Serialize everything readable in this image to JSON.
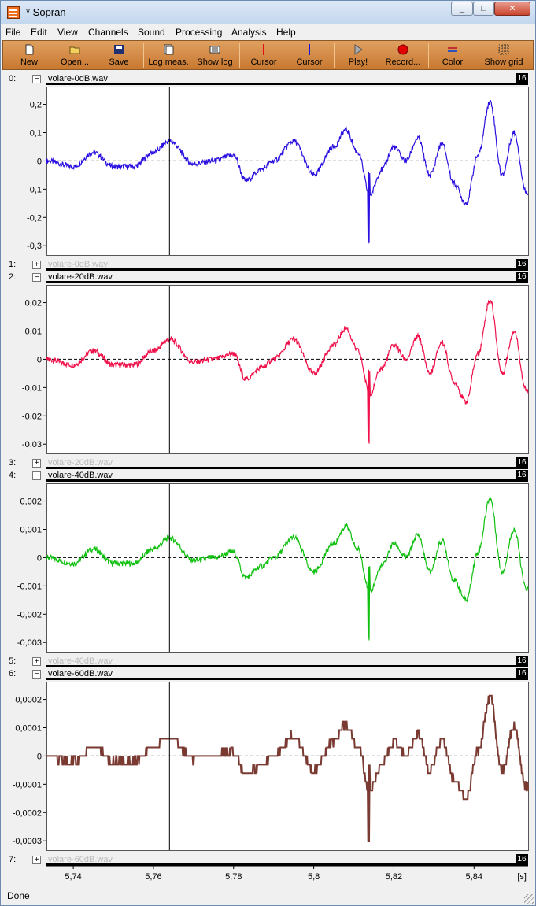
{
  "window": {
    "title": "* Sopran",
    "minimize": "_",
    "maximize": "□",
    "close": "✕"
  },
  "menu": [
    "File",
    "Edit",
    "View",
    "Channels",
    "Sound",
    "Processing",
    "Analysis",
    "Help"
  ],
  "toolbar": {
    "new": "New",
    "open": "Open...",
    "save": "Save",
    "log_meas": "Log meas.",
    "show_log": "Show log",
    "cursor_red": "Cursor",
    "cursor_blue": "Cursor",
    "play": "Play!",
    "record": "Record...",
    "color": "Color",
    "show_grid": "Show grid"
  },
  "channels": [
    {
      "index": "0:",
      "name": "volare-0dB.wav",
      "bits": "16",
      "toggle": "−",
      "color": "#2a10e0",
      "ticks": [
        "0,2",
        "0,1",
        "0",
        "-0,1",
        "-0,2",
        "-0,3"
      ],
      "tick_values": [
        0.2,
        0.1,
        0,
        -0.1,
        -0.2,
        -0.3
      ],
      "yrange": [
        -0.33,
        0.26
      ]
    },
    {
      "index": "1:",
      "name": "volare-0dB.wav",
      "bits": "16",
      "toggle": "+"
    },
    {
      "index": "2:",
      "name": "volare-20dB.wav",
      "bits": "16",
      "toggle": "−",
      "color": "#f0104a",
      "ticks": [
        "0,02",
        "0,01",
        "0",
        "-0,01",
        "-0,02",
        "-0,03"
      ],
      "tick_values": [
        0.02,
        0.01,
        0,
        -0.01,
        -0.02,
        -0.03
      ],
      "yrange": [
        -0.033,
        0.026
      ]
    },
    {
      "index": "3:",
      "name": "volare-20dB.wav",
      "bits": "16",
      "toggle": "+"
    },
    {
      "index": "4:",
      "name": "volare-40dB.wav",
      "bits": "16",
      "toggle": "−",
      "color": "#10c010",
      "ticks": [
        "0,002",
        "0,001",
        "0",
        "-0,001",
        "-0,002",
        "-0,003"
      ],
      "tick_values": [
        0.002,
        0.001,
        0,
        -0.001,
        -0.002,
        -0.003
      ],
      "yrange": [
        -0.0033,
        0.0026
      ]
    },
    {
      "index": "5:",
      "name": "volare-40dB.wav",
      "bits": "16",
      "toggle": "+"
    },
    {
      "index": "6:",
      "name": "volare-60dB.wav",
      "bits": "16",
      "toggle": "−",
      "color": "#7a3a32",
      "ticks": [
        "0,0002",
        "0,0001",
        "0",
        "-0,0001",
        "-0,0002",
        "-0,0003"
      ],
      "tick_values": [
        0.0002,
        0.0001,
        0,
        -0.0001,
        -0.0002,
        -0.0003
      ],
      "yrange": [
        -0.00033,
        0.00026
      ]
    },
    {
      "index": "7:",
      "name": "volare-60dB.wav",
      "bits": "16",
      "toggle": "+"
    }
  ],
  "time_axis": {
    "ticks": [
      "5,74",
      "5,76",
      "5,78",
      "5,8",
      "5,82",
      "5,84"
    ],
    "tick_values": [
      5.74,
      5.76,
      5.78,
      5.8,
      5.82,
      5.84
    ],
    "unit": "[s]",
    "range": [
      5.7333,
      5.8535
    ]
  },
  "cursor_time": 5.764,
  "status": "Done",
  "chart_data": {
    "type": "line",
    "xlabel": "[s]",
    "xlim": [
      5.7333,
      5.8535
    ],
    "series": [
      {
        "name": "volare-0dB.wav",
        "scale": 1
      },
      {
        "name": "volare-20dB.wav",
        "scale": 0.1
      },
      {
        "name": "volare-40dB.wav",
        "scale": 0.01
      },
      {
        "name": "volare-60dB.wav",
        "scale": 0.001,
        "quantized": true
      }
    ],
    "x": [
      5.7333,
      5.74,
      5.745,
      5.75,
      5.755,
      5.76,
      5.764,
      5.77,
      5.775,
      5.78,
      5.783,
      5.787,
      5.79,
      5.795,
      5.8,
      5.805,
      5.808,
      5.811,
      5.814,
      5.817,
      5.82,
      5.823,
      5.826,
      5.829,
      5.832,
      5.835,
      5.838,
      5.841,
      5.844,
      5.847,
      5.85,
      5.853
    ],
    "values": [
      0.0,
      -0.02,
      0.03,
      -0.02,
      -0.02,
      0.03,
      0.07,
      -0.01,
      0.0,
      0.02,
      -0.07,
      -0.03,
      0.0,
      0.07,
      -0.05,
      0.05,
      0.11,
      0.03,
      -0.12,
      -0.03,
      0.05,
      0.0,
      0.08,
      -0.05,
      0.06,
      -0.08,
      -0.15,
      0.02,
      0.21,
      -0.05,
      0.1,
      -0.11
    ]
  }
}
